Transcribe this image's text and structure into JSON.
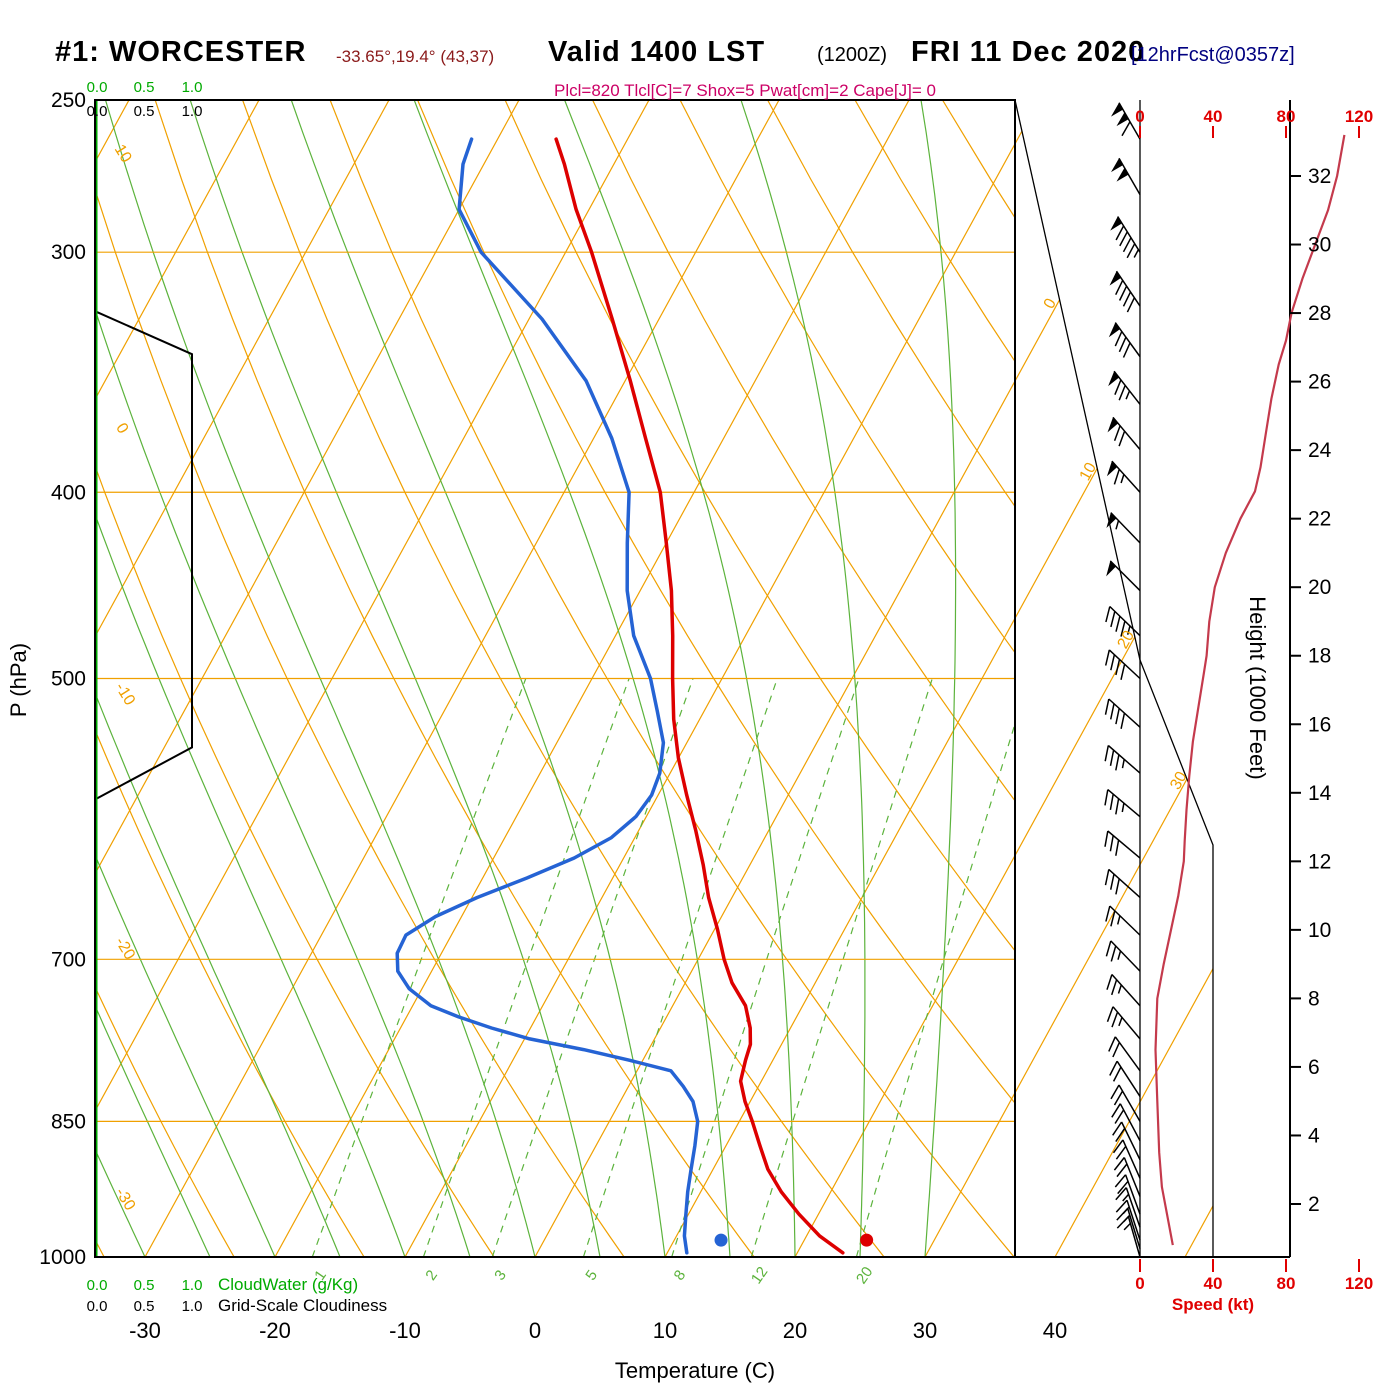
{
  "title": {
    "station": "#1: WORCESTER",
    "coords": "-33.65°,19.4° (43,37)",
    "valid": "Valid 1400 LST",
    "zulu": "(1200Z)",
    "date": "FRI 11 Dec 2020",
    "fcst": "[12hrFcst@0357z]"
  },
  "params_line": "Plcl=820 Tlcl[C]=7 Shox=5 Pwat[cm]=2 Cape[J]= 0",
  "axis_labels": {
    "pressure": "P (hPa)",
    "temperature": "Temperature (C)",
    "height": "Height (1000 Feet)",
    "speed": "Speed (kt)"
  },
  "legend": {
    "cloudwater": "CloudWater (g/Kg)",
    "cloudiness": "Grid-Scale Cloudiness"
  },
  "corner_scales": {
    "cloudwater": [
      "0.0",
      "0.5",
      "1.0"
    ],
    "cloudiness": [
      "0.0",
      "0.5",
      "1.0"
    ]
  },
  "colors": {
    "isotherm": "#f0a000",
    "moist": "#5cb33c",
    "temperature": "#dd0000",
    "dewpoint": "#2563d4",
    "speed_curve": "#c43a4c",
    "red_text": "#e00000",
    "axis_green": "#00aa00",
    "magenta": "#cc0066",
    "navy": "#000080",
    "black": "#000000"
  },
  "chart_data": {
    "type": "line",
    "subtype": "skew-t-log-p-sounding",
    "title": "#1: WORCESTER Valid 1400 LST (1200Z) FRI 11 Dec 2020",
    "pressure_axis": {
      "label": "P (hPa)",
      "scale": "log",
      "range": [
        250,
        1000
      ],
      "ticks": [
        250,
        300,
        400,
        500,
        700,
        850,
        1000
      ]
    },
    "temperature_axis": {
      "label": "Temperature (C)",
      "range": [
        -30,
        40
      ],
      "ticks": [
        -30,
        -20,
        -10,
        0,
        10,
        20,
        30,
        40
      ],
      "skewed": true
    },
    "height_axis": {
      "label": "Height (1000 Feet)",
      "ticks": [
        2,
        4,
        6,
        8,
        10,
        12,
        14,
        16,
        18,
        20,
        22,
        24,
        26,
        28,
        30,
        32
      ]
    },
    "speed_axis": {
      "label": "Speed (kt)",
      "ticks": [
        0,
        40,
        80,
        120
      ]
    },
    "dry_adiabat_labels": [
      10,
      0,
      -10,
      -20,
      -30
    ],
    "isotherm_right_labels": [
      0,
      10,
      20,
      30
    ],
    "mixing_ratio_lines": [
      1,
      2,
      3,
      5,
      8,
      12,
      20
    ],
    "moist_adiabat_surface_temps": [
      -40,
      -35,
      -30,
      -25,
      -20,
      -15,
      -10,
      -5,
      0,
      5,
      10,
      15,
      20,
      25,
      30
    ],
    "isobar_lines": [
      300,
      400,
      500,
      700,
      850
    ],
    "temperature_profile": [
      [
        995,
        23.5
      ],
      [
        975,
        21.0
      ],
      [
        950,
        18.5
      ],
      [
        925,
        16.2
      ],
      [
        900,
        14.2
      ],
      [
        875,
        12.6
      ],
      [
        850,
        11.0
      ],
      [
        830,
        9.6
      ],
      [
        810,
        8.4
      ],
      [
        790,
        7.9
      ],
      [
        775,
        7.6
      ],
      [
        760,
        6.9
      ],
      [
        740,
        5.6
      ],
      [
        720,
        3.6
      ],
      [
        700,
        2.0
      ],
      [
        675,
        0.2
      ],
      [
        650,
        -1.8
      ],
      [
        625,
        -3.6
      ],
      [
        600,
        -5.6
      ],
      [
        575,
        -7.8
      ],
      [
        550,
        -10.0
      ],
      [
        525,
        -12.0
      ],
      [
        500,
        -13.8
      ],
      [
        475,
        -15.6
      ],
      [
        450,
        -17.6
      ],
      [
        425,
        -20.0
      ],
      [
        400,
        -22.6
      ],
      [
        375,
        -26.0
      ],
      [
        350,
        -29.6
      ],
      [
        325,
        -33.6
      ],
      [
        300,
        -38.0
      ],
      [
        285,
        -41.0
      ],
      [
        270,
        -43.8
      ],
      [
        262,
        -45.5
      ]
    ],
    "dewpoint_profile": [
      [
        995,
        11.5
      ],
      [
        975,
        10.6
      ],
      [
        950,
        9.8
      ],
      [
        925,
        9.0
      ],
      [
        900,
        8.3
      ],
      [
        875,
        7.6
      ],
      [
        850,
        6.8
      ],
      [
        830,
        5.6
      ],
      [
        815,
        4.2
      ],
      [
        800,
        2.6
      ],
      [
        790,
        -1.0
      ],
      [
        780,
        -5.0
      ],
      [
        770,
        -9.6
      ],
      [
        760,
        -13.0
      ],
      [
        750,
        -16.0
      ],
      [
        740,
        -18.6
      ],
      [
        725,
        -21.0
      ],
      [
        710,
        -22.6
      ],
      [
        695,
        -23.4
      ],
      [
        680,
        -23.5
      ],
      [
        665,
        -22.0
      ],
      [
        650,
        -19.6
      ],
      [
        635,
        -16.6
      ],
      [
        620,
        -13.8
      ],
      [
        605,
        -11.8
      ],
      [
        590,
        -10.8
      ],
      [
        575,
        -10.5
      ],
      [
        560,
        -10.8
      ],
      [
        540,
        -11.8
      ],
      [
        520,
        -13.6
      ],
      [
        500,
        -15.5
      ],
      [
        475,
        -18.6
      ],
      [
        450,
        -21.0
      ],
      [
        425,
        -23.0
      ],
      [
        400,
        -25.0
      ],
      [
        375,
        -28.6
      ],
      [
        350,
        -33.0
      ],
      [
        325,
        -39.0
      ],
      [
        300,
        -46.5
      ],
      [
        285,
        -50.0
      ],
      [
        270,
        -51.6
      ],
      [
        262,
        -52.0
      ]
    ],
    "surface_markers": {
      "temperature": {
        "pressure": 980,
        "value": 24.8
      },
      "dewpoint": {
        "pressure": 980,
        "value": 13.6
      }
    },
    "wind_profile_p_dir_kt": [
      [
        262,
        330,
        110
      ],
      [
        280,
        330,
        102
      ],
      [
        300,
        328,
        95
      ],
      [
        320,
        326,
        88
      ],
      [
        340,
        324,
        82
      ],
      [
        360,
        322,
        76
      ],
      [
        380,
        320,
        70
      ],
      [
        400,
        318,
        63
      ],
      [
        425,
        316,
        56
      ],
      [
        450,
        315,
        50
      ],
      [
        475,
        314,
        46
      ],
      [
        500,
        313,
        42
      ],
      [
        530,
        312,
        38
      ],
      [
        560,
        311,
        36
      ],
      [
        590,
        310,
        34
      ],
      [
        620,
        310,
        31
      ],
      [
        650,
        312,
        29
      ],
      [
        680,
        314,
        27
      ],
      [
        710,
        316,
        25
      ],
      [
        740,
        318,
        24
      ],
      [
        770,
        320,
        23
      ],
      [
        800,
        324,
        22
      ],
      [
        825,
        327,
        21
      ],
      [
        850,
        330,
        20
      ],
      [
        870,
        332,
        20
      ],
      [
        890,
        334,
        19
      ],
      [
        910,
        336,
        19
      ],
      [
        930,
        338,
        18
      ],
      [
        950,
        340,
        18
      ],
      [
        965,
        341,
        17
      ],
      [
        980,
        342,
        17
      ],
      [
        990,
        343,
        16
      ],
      [
        1000,
        344,
        16
      ]
    ],
    "speed_profile_kft_kt": [
      [
        0.8,
        18
      ],
      [
        1.5,
        15.5
      ],
      [
        2.5,
        12
      ],
      [
        3.5,
        10.5
      ],
      [
        5,
        9.5
      ],
      [
        6.5,
        8.5
      ],
      [
        8,
        9.5
      ],
      [
        9,
        13
      ],
      [
        10,
        17
      ],
      [
        11,
        21
      ],
      [
        12,
        24
      ],
      [
        12.6,
        24.5
      ],
      [
        13.5,
        25.5
      ],
      [
        14.5,
        27
      ],
      [
        15.5,
        29
      ],
      [
        16.5,
        32
      ],
      [
        17.5,
        35
      ],
      [
        18,
        36.5
      ],
      [
        19,
        38
      ],
      [
        20,
        41
      ],
      [
        21,
        47
      ],
      [
        22,
        55
      ],
      [
        22.8,
        63
      ],
      [
        23.5,
        66
      ],
      [
        24.5,
        69
      ],
      [
        25.5,
        72
      ],
      [
        26.5,
        76
      ],
      [
        27.2,
        80
      ],
      [
        28,
        83
      ],
      [
        29,
        89
      ],
      [
        30,
        96
      ],
      [
        31,
        103
      ],
      [
        32,
        108
      ],
      [
        33.2,
        112
      ]
    ],
    "cloudiness_profile_p_val": [
      [
        1000,
        0
      ],
      [
        578,
        0
      ],
      [
        543,
        1
      ],
      [
        339,
        1
      ],
      [
        322,
        0
      ],
      [
        250,
        0
      ]
    ],
    "cloudwater_profile_p_val": [
      [
        1000,
        0
      ],
      [
        250,
        0
      ]
    ]
  }
}
